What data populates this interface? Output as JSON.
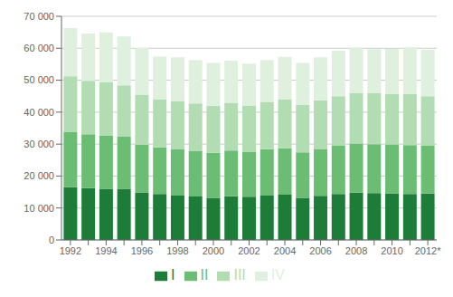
{
  "chart_data": {
    "type": "bar",
    "stacked": true,
    "categories": [
      "1992",
      null,
      "1994",
      null,
      "1996",
      null,
      "1998",
      null,
      "2000",
      null,
      "2002",
      null,
      "2004",
      null,
      "2006",
      null,
      "2008",
      null,
      "2010",
      null,
      "2012*"
    ],
    "series": [
      {
        "name": "I",
        "color": "#1d7d38",
        "values": [
          16500,
          16200,
          16000,
          16000,
          14900,
          14400,
          13900,
          13600,
          13200,
          13700,
          13500,
          13900,
          14200,
          13200,
          13800,
          14400,
          14800,
          14700,
          14600,
          14400,
          14500
        ]
      },
      {
        "name": "II",
        "color": "#6cbd74",
        "values": [
          17200,
          16900,
          16700,
          16300,
          14900,
          14600,
          14600,
          14300,
          14100,
          14300,
          14000,
          14500,
          14500,
          14200,
          14700,
          15100,
          15400,
          15300,
          15300,
          15300,
          15000
        ]
      },
      {
        "name": "III",
        "color": "#b2dcb2",
        "values": [
          17500,
          16700,
          16600,
          16100,
          15700,
          14900,
          15000,
          14800,
          14700,
          14900,
          14600,
          14800,
          15200,
          15000,
          15200,
          15500,
          15700,
          15900,
          15900,
          16100,
          15500
        ]
      },
      {
        "name": "IV",
        "color": "#dff0df",
        "values": [
          15100,
          14800,
          15700,
          15300,
          14600,
          13500,
          13700,
          13600,
          13400,
          13200,
          13100,
          13100,
          13400,
          13000,
          13500,
          14200,
          14300,
          13800,
          14000,
          14500,
          14500
        ]
      }
    ],
    "ylim": [
      0,
      70000
    ],
    "yticks": [
      0,
      {
        "value": 10000,
        "label": "10 000"
      },
      {
        "value": 20000,
        "label": "20 000"
      },
      {
        "value": 30000,
        "label": "30 000"
      },
      {
        "value": 40000,
        "label": "40 000"
      },
      {
        "value": 50000,
        "label": "50 000"
      },
      {
        "value": 60000,
        "label": "60 000"
      },
      {
        "value": 70000,
        "label": "70 000"
      }
    ],
    "grid": true,
    "legend": "bottom"
  }
}
